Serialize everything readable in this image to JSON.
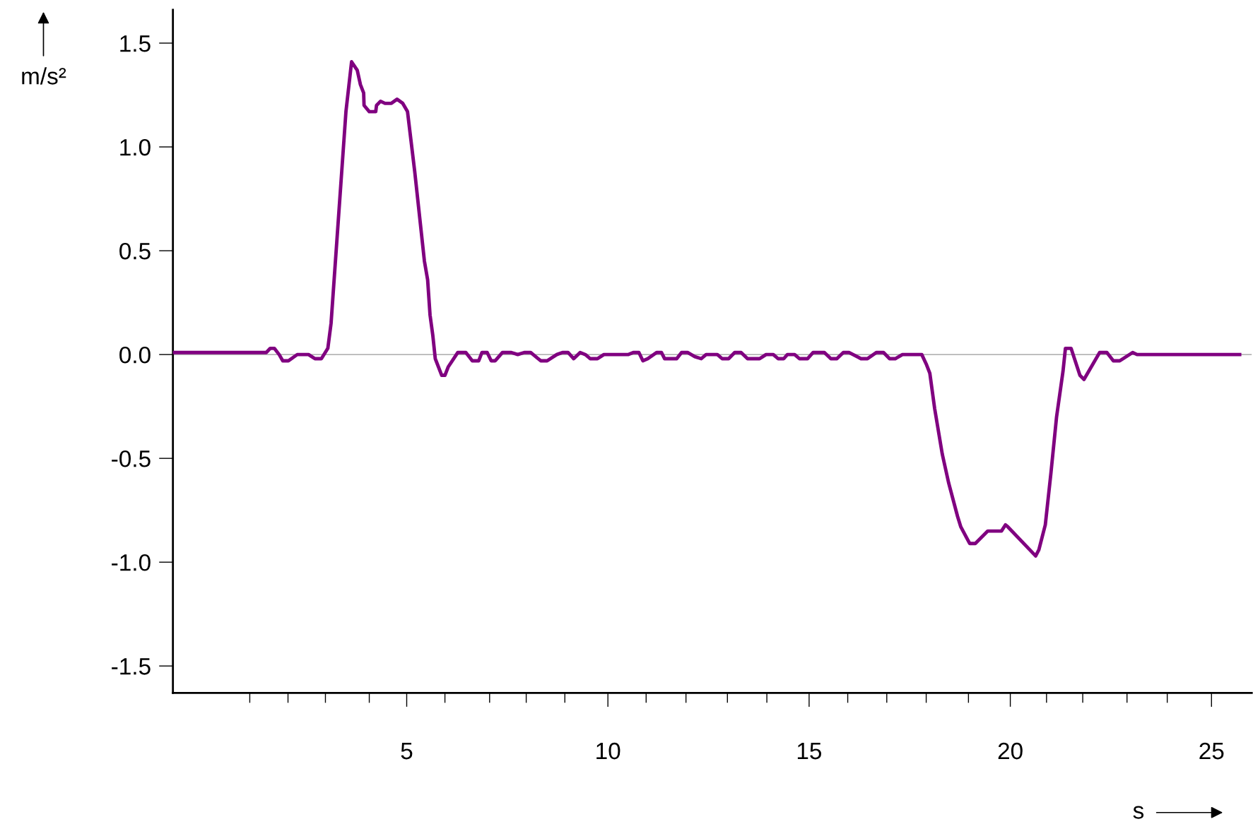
{
  "chart_data": {
    "type": "line",
    "xlabel": "s",
    "ylabel": "m/s²",
    "x": [
      -0.81,
      1.51,
      1.61,
      1.71,
      1.83,
      1.92,
      2.06,
      2.28,
      2.56,
      2.72,
      2.88,
      3.04,
      3.12,
      3.49,
      3.63,
      3.77,
      3.85,
      3.93,
      3.94,
      4.07,
      4.23,
      4.25,
      4.35,
      4.46,
      4.62,
      4.76,
      4.9,
      5.02,
      5.2,
      5.44,
      5.52,
      5.58,
      5.65,
      5.71,
      5.87,
      5.95,
      6.03,
      6.27,
      6.47,
      6.63,
      6.79,
      6.87,
      7.0,
      7.1,
      7.2,
      7.38,
      7.6,
      7.76,
      7.92,
      8.08,
      8.33,
      8.49,
      8.73,
      8.87,
      9.01,
      9.15,
      9.31,
      9.44,
      9.56,
      9.74,
      9.9,
      10.5,
      10.63,
      10.77,
      10.87,
      10.99,
      11.21,
      11.33,
      11.41,
      11.71,
      11.83,
      11.98,
      12.16,
      12.32,
      12.44,
      12.72,
      12.84,
      13.0,
      13.15,
      13.31,
      13.47,
      13.77,
      13.93,
      14.11,
      14.23,
      14.37,
      14.46,
      14.64,
      14.76,
      14.96,
      15.1,
      15.38,
      15.54,
      15.69,
      15.85,
      15.99,
      16.29,
      16.45,
      16.67,
      16.85,
      17.0,
      17.14,
      17.32,
      17.8,
      17.92,
      18.0,
      18.12,
      18.31,
      18.47,
      18.69,
      18.77,
      18.99,
      19.13,
      19.44,
      19.78,
      19.88,
      19.94,
      20.63,
      20.71,
      20.87,
      21.01,
      21.15,
      21.31,
      21.37,
      21.51,
      21.73,
      21.83,
      22.22,
      22.4,
      22.56,
      22.72,
      23.04,
      23.15,
      25.7
    ],
    "series": [
      {
        "color": "#800080",
        "values": [
          0.01,
          0.01,
          0.03,
          0.03,
          0.0,
          -0.03,
          -0.03,
          0.0,
          0.0,
          -0.02,
          -0.02,
          0.03,
          0.15,
          1.17,
          1.41,
          1.37,
          1.3,
          1.26,
          1.2,
          1.17,
          1.17,
          1.2,
          1.22,
          1.21,
          1.21,
          1.23,
          1.21,
          1.17,
          0.88,
          0.45,
          0.36,
          0.19,
          0.09,
          -0.02,
          -0.1,
          -0.1,
          -0.06,
          0.01,
          0.01,
          -0.03,
          -0.03,
          0.01,
          0.01,
          -0.03,
          -0.03,
          0.01,
          0.01,
          0.0,
          0.01,
          0.01,
          -0.03,
          -0.03,
          0.0,
          0.01,
          0.01,
          -0.02,
          0.01,
          0.0,
          -0.02,
          -0.02,
          0.0,
          0.0,
          0.01,
          0.01,
          -0.03,
          -0.02,
          0.01,
          0.01,
          -0.02,
          -0.02,
          0.01,
          0.01,
          -0.01,
          -0.02,
          0.0,
          0.0,
          -0.02,
          -0.02,
          0.01,
          0.01,
          -0.02,
          -0.02,
          0.0,
          0.0,
          -0.02,
          -0.02,
          0.0,
          0.0,
          -0.02,
          -0.02,
          0.01,
          0.01,
          -0.02,
          -0.02,
          0.01,
          0.01,
          -0.02,
          -0.02,
          0.01,
          0.01,
          -0.02,
          -0.02,
          0.0,
          0.0,
          -0.05,
          -0.09,
          -0.26,
          -0.48,
          -0.62,
          -0.78,
          -0.83,
          -0.91,
          -0.91,
          -0.85,
          -0.85,
          -0.82,
          -0.83,
          -0.97,
          -0.94,
          -0.82,
          -0.57,
          -0.3,
          -0.08,
          0.03,
          0.03,
          -0.1,
          -0.12,
          0.01,
          0.01,
          -0.03,
          -0.03,
          0.01,
          0.0,
          0.0
        ]
      }
    ],
    "xlim": [
      -0.81,
      26.0
    ],
    "ylim": [
      -1.63,
      1.66
    ],
    "xticks": [
      {
        "value": 1.1,
        "label": null
      },
      {
        "value": 2.05,
        "label": null
      },
      {
        "value": 2.98,
        "label": null
      },
      {
        "value": 4.07,
        "label": null
      },
      5,
      {
        "value": 5.95,
        "label": null
      },
      {
        "value": 7.06,
        "label": null
      },
      {
        "value": 7.97,
        "label": null
      },
      {
        "value": 8.93,
        "label": null
      },
      10,
      {
        "value": 10.95,
        "label": null
      },
      {
        "value": 11.94,
        "label": null
      },
      {
        "value": 12.97,
        "label": null
      },
      {
        "value": 13.95,
        "label": null
      },
      15,
      {
        "value": 15.96,
        "label": null
      },
      {
        "value": 16.93,
        "label": null
      },
      {
        "value": 17.91,
        "label": null
      },
      {
        "value": 18.96,
        "label": null
      },
      20,
      {
        "value": 20.9,
        "label": null
      },
      {
        "value": 21.8,
        "label": null
      },
      {
        "value": 22.9,
        "label": null
      },
      {
        "value": 23.9,
        "label": null
      },
      25
    ],
    "yticks": [
      {
        "value": -1.5,
        "label": "-1.5"
      },
      {
        "value": -1.0,
        "label": "-1.0"
      },
      {
        "value": -0.5,
        "label": "-0.5"
      },
      {
        "value": 0.0,
        "label": "0.0"
      },
      {
        "value": 0.5,
        "label": "0.5"
      },
      {
        "value": 1.0,
        "label": "1.0"
      },
      {
        "value": 1.5,
        "label": "1.5"
      }
    ],
    "ref_lines": [
      {
        "axis": "y",
        "value": 0,
        "color": "#999999"
      }
    ],
    "grid": false,
    "legend": false
  }
}
